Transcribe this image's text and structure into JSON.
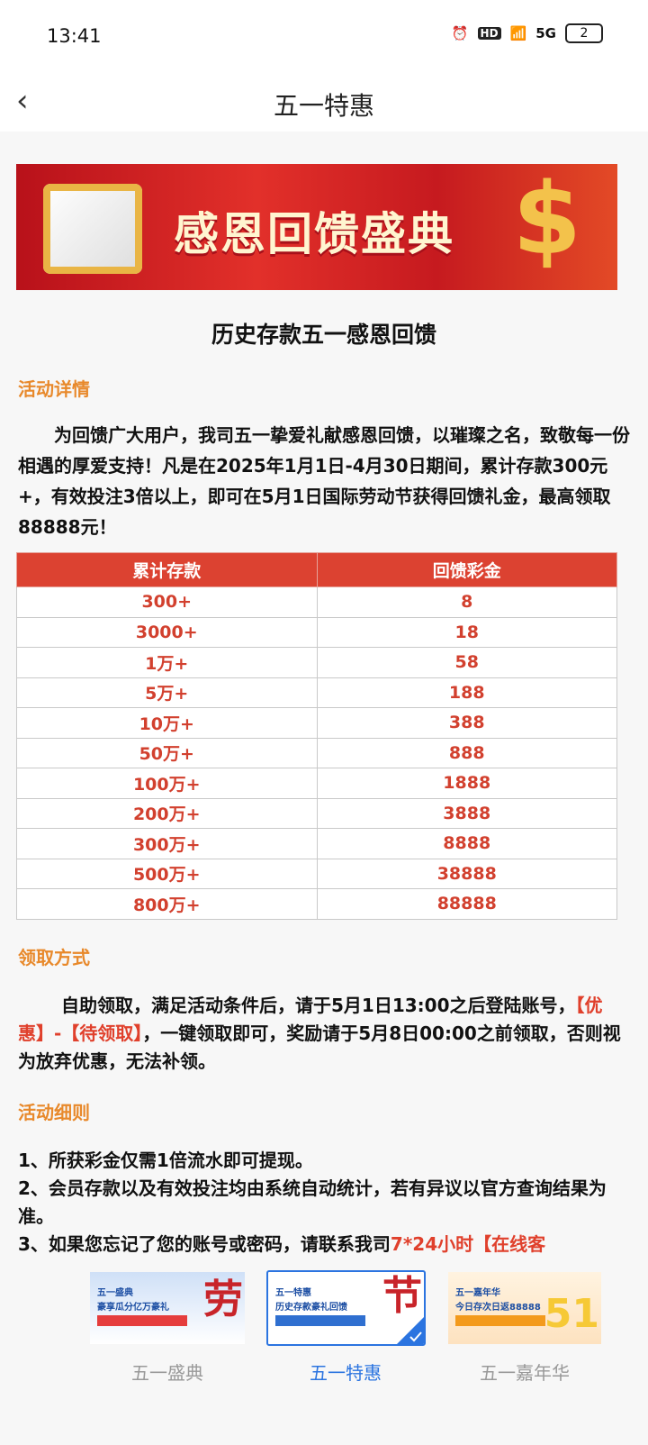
{
  "status": {
    "time": "13:41",
    "hd": "HD",
    "net": "5G",
    "battery": "2"
  },
  "header": {
    "back_icon": "chevron-left-icon",
    "title": "五一特惠"
  },
  "banner": {
    "text": "感恩回馈盛典",
    "colors": {
      "bg": "#d42424",
      "text": "#fff5d0"
    }
  },
  "page_title": "历史存款五一感恩回馈",
  "sections": {
    "details": {
      "heading": "活动详情",
      "text": "为回馈广大用户，我司五一挚爱礼献感恩回馈，以璀璨之名，致敬每一份相遇的厚爱支持！凡是在2025年1月1日-4月30日期间，累计存款300元+，有效投注3倍以上，即可在5月1日国际劳动节获得回馈礼金，最高领取88888元！"
    },
    "claim": {
      "heading": "领取方式",
      "text_a": "自助领取，满足活动条件后，请于5月1日13:00之后登陆账号，",
      "text_red": "【优惠】-【待领取】",
      "text_b": "，一键领取即可，奖励请于5月8日00:00之前领取，否则视为放弃优惠，无法补领。"
    },
    "rules": {
      "heading": "活动细则",
      "r1": "1、所获彩金仅需1倍流水即可提现。",
      "r2": "2、会员存款以及有效投注均由系统自动统计，若有异议以官方查询结果为准。",
      "r3a": "3、如果您忘记了您的账号或密码，请联系我司",
      "r3red": "7*24小时【在线客"
    }
  },
  "table": {
    "headers": [
      "累计存款",
      "回馈彩金"
    ],
    "rows": [
      [
        "300+",
        "8"
      ],
      [
        "3000+",
        "18"
      ],
      [
        "1万+",
        "58"
      ],
      [
        "5万+",
        "188"
      ],
      [
        "10万+",
        "388"
      ],
      [
        "50万+",
        "888"
      ],
      [
        "100万+",
        "1888"
      ],
      [
        "200万+",
        "3888"
      ],
      [
        "300万+",
        "8888"
      ],
      [
        "500万+",
        "38888"
      ],
      [
        "800万+",
        "88888"
      ]
    ]
  },
  "tabs": [
    {
      "label": "五一盛典",
      "thumb_l1": "五一盛典",
      "thumb_l2": "豪享瓜分亿万豪礼",
      "big": "劳",
      "selected": false
    },
    {
      "label": "五一特惠",
      "thumb_l1": "五一特惠",
      "thumb_l2": "历史存款豪礼回馈",
      "big": "节",
      "selected": true
    },
    {
      "label": "五一嘉年华",
      "thumb_l1": "五一嘉年华",
      "thumb_l2": "今日存次日返88888",
      "big": "51",
      "selected": false
    }
  ],
  "colors": {
    "accent_orange": "#e8892b",
    "red": "#d2402e",
    "selected_blue": "#2b74e0"
  }
}
